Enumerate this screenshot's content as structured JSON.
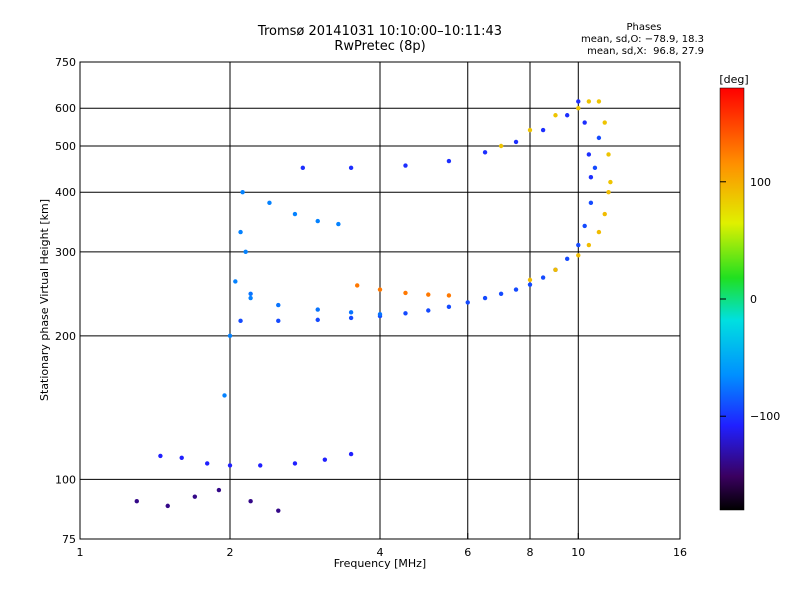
{
  "title_line1": "Tromsø 20141031 10:10:00–10:11:43",
  "title_line2": "RwPretec (8p)",
  "stats": {
    "heading": "Phases",
    "line_o": "mean, sd,O: −78.9, 18.3",
    "line_x": "mean, sd,X:  96.8, 27.9"
  },
  "colorbar": {
    "label": "[deg]",
    "ticks": [
      "100",
      "0",
      "−100"
    ],
    "tick_values": [
      100,
      0,
      -100
    ],
    "range": [
      -180,
      180
    ]
  },
  "chart_data": {
    "type": "scatter",
    "xlabel": "Frequency [MHz]",
    "ylabel": "Stationary phase Virtual Height [km]",
    "xscale": "log",
    "yscale": "log",
    "xlim": [
      1,
      16
    ],
    "ylim": [
      75,
      750
    ],
    "xticks": [
      1,
      2,
      4,
      6,
      8,
      10,
      16
    ],
    "xtick_labels": [
      "1",
      "2",
      "4",
      "6",
      "8",
      "10",
      "16"
    ],
    "yticks": [
      75,
      100,
      200,
      300,
      400,
      500,
      600,
      750
    ],
    "ytick_labels": [
      "75",
      "100",
      "200",
      "300",
      "400",
      "500",
      "600",
      "750"
    ],
    "grid": true,
    "series": [
      {
        "freq": [
          1.45,
          1.6,
          1.8,
          2.0,
          2.3,
          2.7,
          3.1,
          3.5
        ],
        "height": [
          112,
          111,
          108,
          107,
          107,
          108,
          110,
          113
        ],
        "phase": -110
      },
      {
        "freq": [
          1.95,
          2.0,
          2.05,
          2.1,
          2.12,
          2.15,
          2.2
        ],
        "height": [
          150,
          200,
          260,
          330,
          400,
          300,
          240
        ],
        "phase": -75
      },
      {
        "freq": [
          2.1,
          2.5,
          3.0,
          3.5,
          4.0,
          4.5,
          5.0,
          5.5,
          6.0,
          6.5,
          7.0,
          7.5,
          8.0,
          8.5,
          9.0,
          9.5,
          10.0,
          10.3,
          10.6,
          10.8,
          11.0
        ],
        "height": [
          215,
          215,
          216,
          218,
          220,
          223,
          226,
          230,
          235,
          240,
          245,
          250,
          256,
          265,
          275,
          290,
          310,
          340,
          380,
          450,
          520
        ],
        "phase": -95
      },
      {
        "freq": [
          2.2,
          2.5,
          3.0,
          3.5,
          4.0
        ],
        "height": [
          245,
          232,
          227,
          224,
          222
        ],
        "phase": -80
      },
      {
        "freq": [
          2.4,
          2.7,
          3.0,
          3.3
        ],
        "height": [
          380,
          360,
          348,
          343
        ],
        "phase": -75
      },
      {
        "freq": [
          2.8,
          3.5,
          4.5,
          5.5,
          6.5,
          7.5,
          8.5,
          9.5,
          10.0,
          10.3,
          10.5,
          10.6
        ],
        "height": [
          450,
          450,
          455,
          465,
          485,
          510,
          540,
          580,
          620,
          560,
          480,
          430
        ],
        "phase": -105
      },
      {
        "freq": [
          3.6,
          4.0,
          4.5,
          5.0,
          5.5
        ],
        "height": [
          255,
          250,
          246,
          244,
          243
        ],
        "phase": 130
      },
      {
        "freq": [
          7.0,
          8.0,
          9.0,
          10.0,
          10.5,
          11.0,
          11.3,
          11.5,
          11.6
        ],
        "height": [
          500,
          540,
          580,
          600,
          620,
          620,
          560,
          480,
          420
        ],
        "phase": 90
      },
      {
        "freq": [
          8.0,
          9.0,
          10.0,
          10.5,
          11.0,
          11.3,
          11.5
        ],
        "height": [
          262,
          275,
          295,
          310,
          330,
          360,
          400
        ],
        "phase": 95
      },
      {
        "freq": [
          1.3,
          1.5,
          1.7,
          1.9,
          2.2,
          2.5
        ],
        "height": [
          90,
          88,
          92,
          95,
          90,
          86
        ],
        "phase": -140
      }
    ]
  }
}
